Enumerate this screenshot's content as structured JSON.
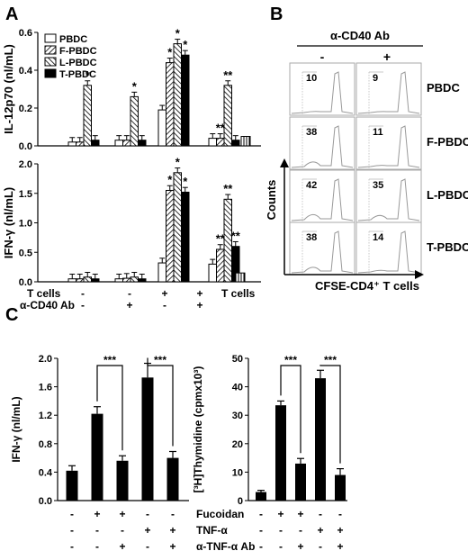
{
  "panel_labels": {
    "A": "A",
    "B": "B",
    "C": "C"
  },
  "chart_data": [
    {
      "id": "A_top",
      "type": "bar",
      "ylabel": "IL-12p70 (nl/mL)",
      "ylim": [
        0,
        0.6
      ],
      "yticks": [
        "0.0",
        "0.2",
        "0.4",
        "0.6"
      ],
      "legend": [
        "PBDC",
        "F-PBDC",
        "L-PBDC",
        "T-PBDC"
      ],
      "legend_position": "top-left",
      "groups": [
        {
          "values": [
            0.02,
            0.02,
            0.32,
            0.03
          ],
          "stars": [
            "",
            "",
            "*",
            ""
          ]
        },
        {
          "values": [
            0.03,
            0.03,
            0.26,
            0.03
          ],
          "stars": [
            "",
            "",
            "*",
            ""
          ]
        },
        {
          "values": [
            0.19,
            0.44,
            0.54,
            0.48
          ],
          "stars": [
            "",
            "*",
            "*",
            "*"
          ]
        },
        {
          "values": [
            0.04,
            0.04,
            0.32,
            0.03
          ],
          "stars": [
            "",
            "**",
            "**",
            ""
          ]
        }
      ],
      "tcells_only": {
        "value": 0.05
      }
    },
    {
      "id": "A_bottom",
      "type": "bar",
      "ylabel": "IFN-γ (nl/mL)",
      "ylim": [
        0,
        2.0
      ],
      "yticks": [
        "0.0",
        "0.5",
        "1.0",
        "1.5",
        "2.0"
      ],
      "groups": [
        {
          "values": [
            0.05,
            0.05,
            0.08,
            0.05
          ],
          "stars": [
            "",
            "",
            "",
            ""
          ]
        },
        {
          "values": [
            0.05,
            0.06,
            0.08,
            0.05
          ],
          "stars": [
            "",
            "",
            "",
            ""
          ]
        },
        {
          "values": [
            0.32,
            1.55,
            1.85,
            1.52
          ],
          "stars": [
            "",
            "*",
            "*",
            "*"
          ]
        },
        {
          "values": [
            0.3,
            0.55,
            1.4,
            0.6
          ],
          "stars": [
            "",
            "**",
            "**",
            "**"
          ]
        }
      ],
      "tcells_only": {
        "value": 0.15
      },
      "conditions": {
        "rows": [
          {
            "label": "T cells",
            "marks": [
              "-",
              "-",
              "+",
              "+"
            ],
            "extra": "T cells"
          },
          {
            "label": "α-CD40 Ab",
            "marks": [
              "-",
              "+",
              "-",
              "+"
            ]
          }
        ]
      }
    },
    {
      "id": "B",
      "type": "histogram-grid",
      "header": "α-CD40 Ab",
      "columns": [
        "-",
        "+"
      ],
      "rows": [
        {
          "label": "PBDC",
          "values": [
            "10",
            "9"
          ]
        },
        {
          "label": "F-PBDC",
          "values": [
            "38",
            "11"
          ]
        },
        {
          "label": "L-PBDC",
          "values": [
            "42",
            "35"
          ]
        },
        {
          "label": "T-PBDC",
          "values": [
            "38",
            "14"
          ]
        }
      ],
      "ylabel": "Counts",
      "xlabel": "CFSE-CD4⁺ T cells"
    },
    {
      "id": "C_left",
      "type": "bar",
      "ylabel": "IFN-γ (nl/mL)",
      "ylim": [
        0,
        2.0
      ],
      "yticks": [
        "0.0",
        "0.4",
        "0.8",
        "1.2",
        "1.6",
        "2.0"
      ],
      "values": [
        0.42,
        1.22,
        0.56,
        1.73,
        0.6
      ],
      "errors": [
        0.07,
        0.1,
        0.07,
        0.2,
        0.09
      ],
      "brackets": [
        {
          "from": 1,
          "to": 2,
          "label": "***"
        },
        {
          "from": 3,
          "to": 4,
          "label": "***"
        }
      ]
    },
    {
      "id": "C_right",
      "type": "bar",
      "ylabel": "[³H]Thymidine (cpmx10³)",
      "ylim": [
        0,
        50
      ],
      "yticks": [
        "0",
        "10",
        "20",
        "30",
        "40",
        "50"
      ],
      "values": [
        3,
        33.5,
        13,
        43,
        9
      ],
      "errors": [
        0.6,
        1.5,
        1.8,
        2.8,
        2.2
      ],
      "brackets": [
        {
          "from": 1,
          "to": 2,
          "label": "***"
        },
        {
          "from": 3,
          "to": 4,
          "label": "***"
        }
      ]
    }
  ],
  "c_conditions": {
    "rows": [
      {
        "label": "Fucoidan",
        "marks": [
          "-",
          "+",
          "+",
          "-",
          "-"
        ]
      },
      {
        "label": "TNF-α",
        "marks": [
          "-",
          "-",
          "-",
          "+",
          "+"
        ]
      },
      {
        "label": "α-TNF-α Ab",
        "marks": [
          "-",
          "-",
          "+",
          "-",
          "+"
        ]
      }
    ]
  }
}
